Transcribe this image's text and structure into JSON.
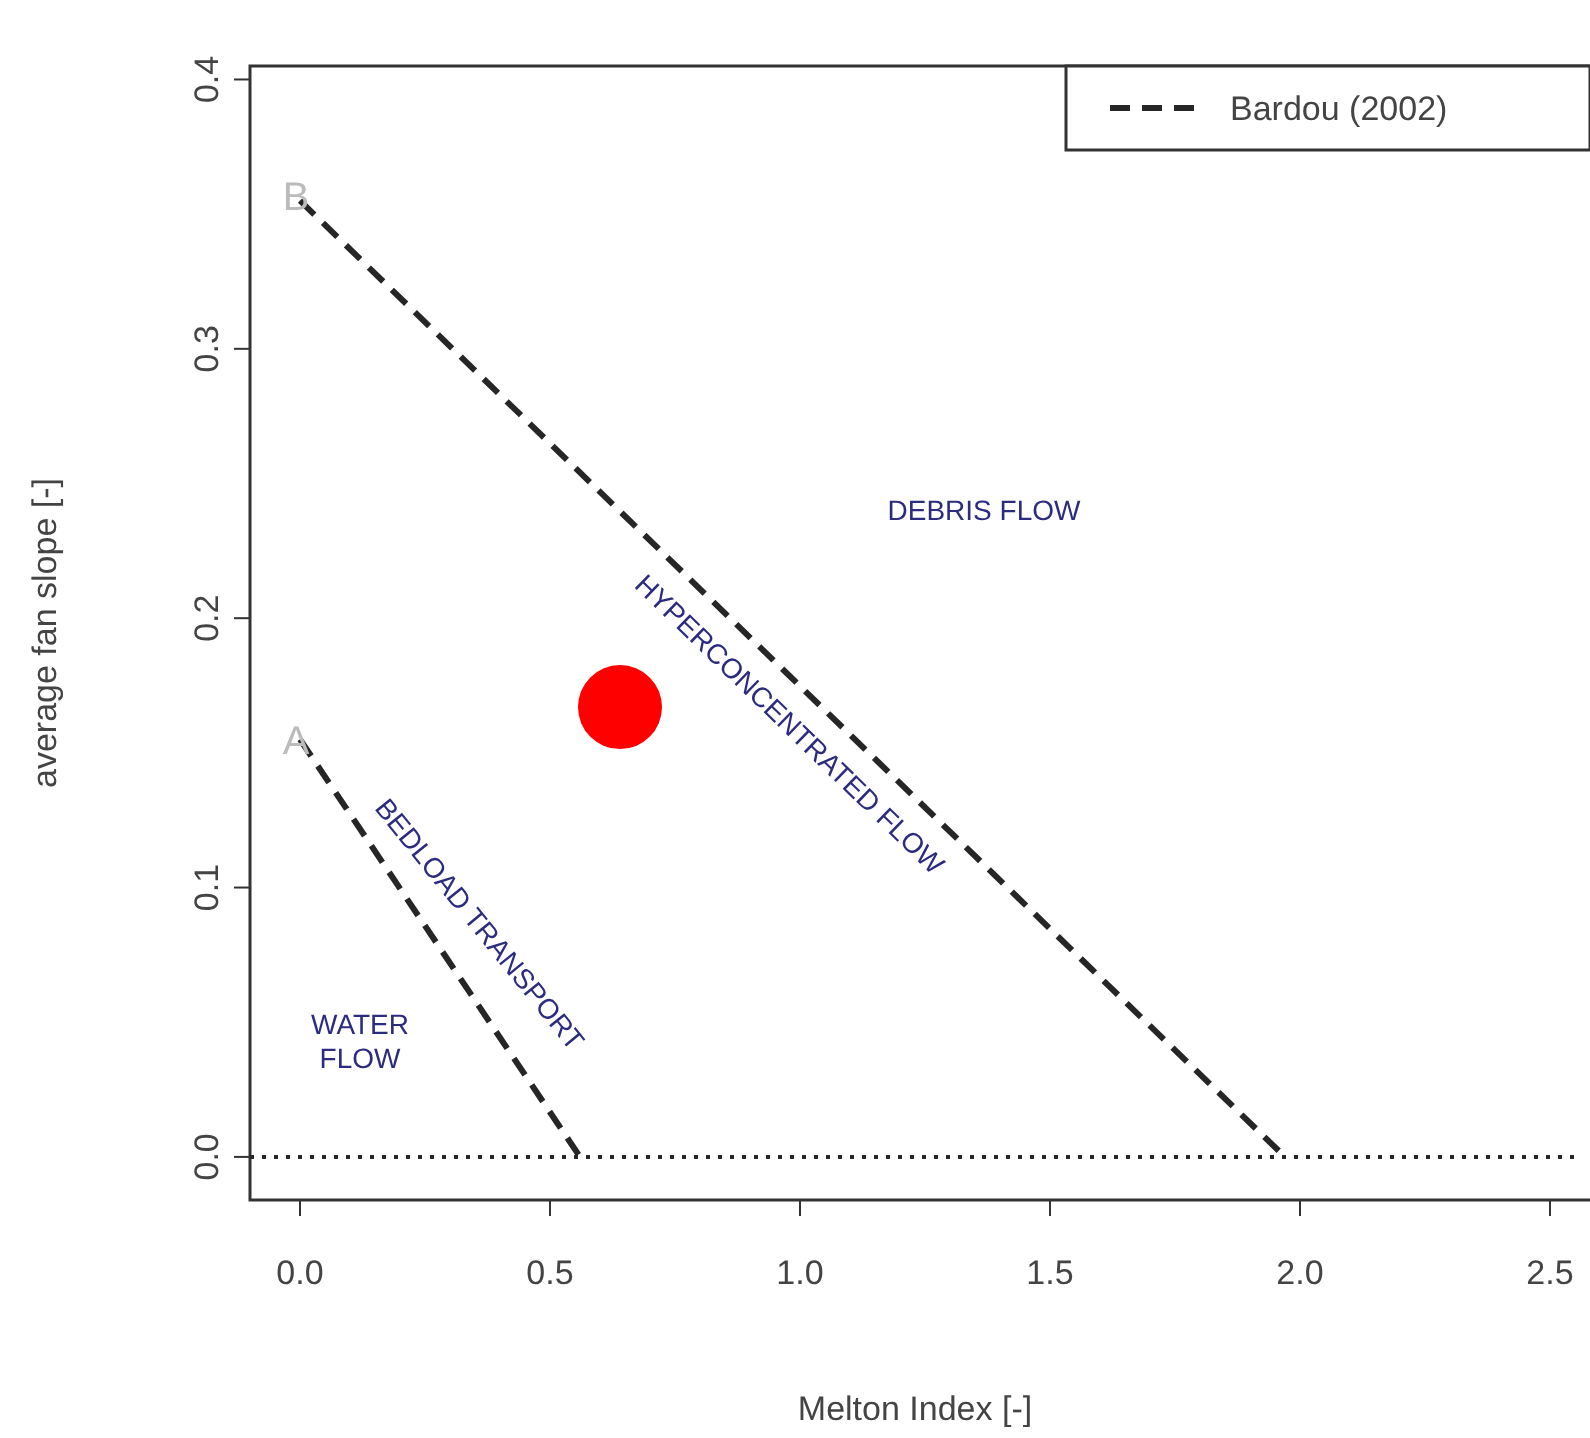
{
  "chart_data": {
    "type": "line",
    "xlabel": "Melton Index [-]",
    "ylabel": "average fan slope [-]",
    "xlim": [
      -0.1,
      2.56
    ],
    "ylim": [
      -0.016,
      0.405
    ],
    "xticks": [
      {
        "value": 0,
        "label": "0.0"
      },
      {
        "value": 0.5,
        "label": "0.5"
      },
      {
        "value": 1,
        "label": "1.0"
      },
      {
        "value": 1.5,
        "label": "1.5"
      },
      {
        "value": 2,
        "label": "2.0"
      },
      {
        "value": 2.5,
        "label": "2.5"
      }
    ],
    "yticks": [
      {
        "value": 0,
        "label": "0.0"
      },
      {
        "value": 0.1,
        "label": "0.1"
      },
      {
        "value": 0.2,
        "label": "0.2"
      },
      {
        "value": 0.3,
        "label": "0.3"
      },
      {
        "value": 0.4,
        "label": "0.4"
      }
    ],
    "series": [
      {
        "name": "Bardou (2002)",
        "color": "#262626",
        "line_style": "dashed",
        "x": [
          0,
          1.97
        ],
        "values": [
          0.355,
          0
        ]
      },
      {
        "color": "#262626",
        "line_style": "dashed",
        "x": [
          0,
          0.56
        ],
        "values": [
          0.155,
          0
        ]
      },
      {
        "type": "scatter",
        "color": "#ff0000",
        "marker": "circle",
        "x": [
          0.64
        ],
        "values": [
          0.167
        ]
      }
    ],
    "ref_lines": [
      {
        "axis": "y",
        "value": 0,
        "line_style": "dotted",
        "color": "#262626"
      }
    ],
    "annotations": [
      "B",
      "A",
      "DEBRIS FLOW",
      "HYPERCONCENTRATED FLOW",
      "BEDLOAD TRANSPORT",
      "WATER\nFLOW"
    ],
    "legend": "top right",
    "grid": false
  }
}
